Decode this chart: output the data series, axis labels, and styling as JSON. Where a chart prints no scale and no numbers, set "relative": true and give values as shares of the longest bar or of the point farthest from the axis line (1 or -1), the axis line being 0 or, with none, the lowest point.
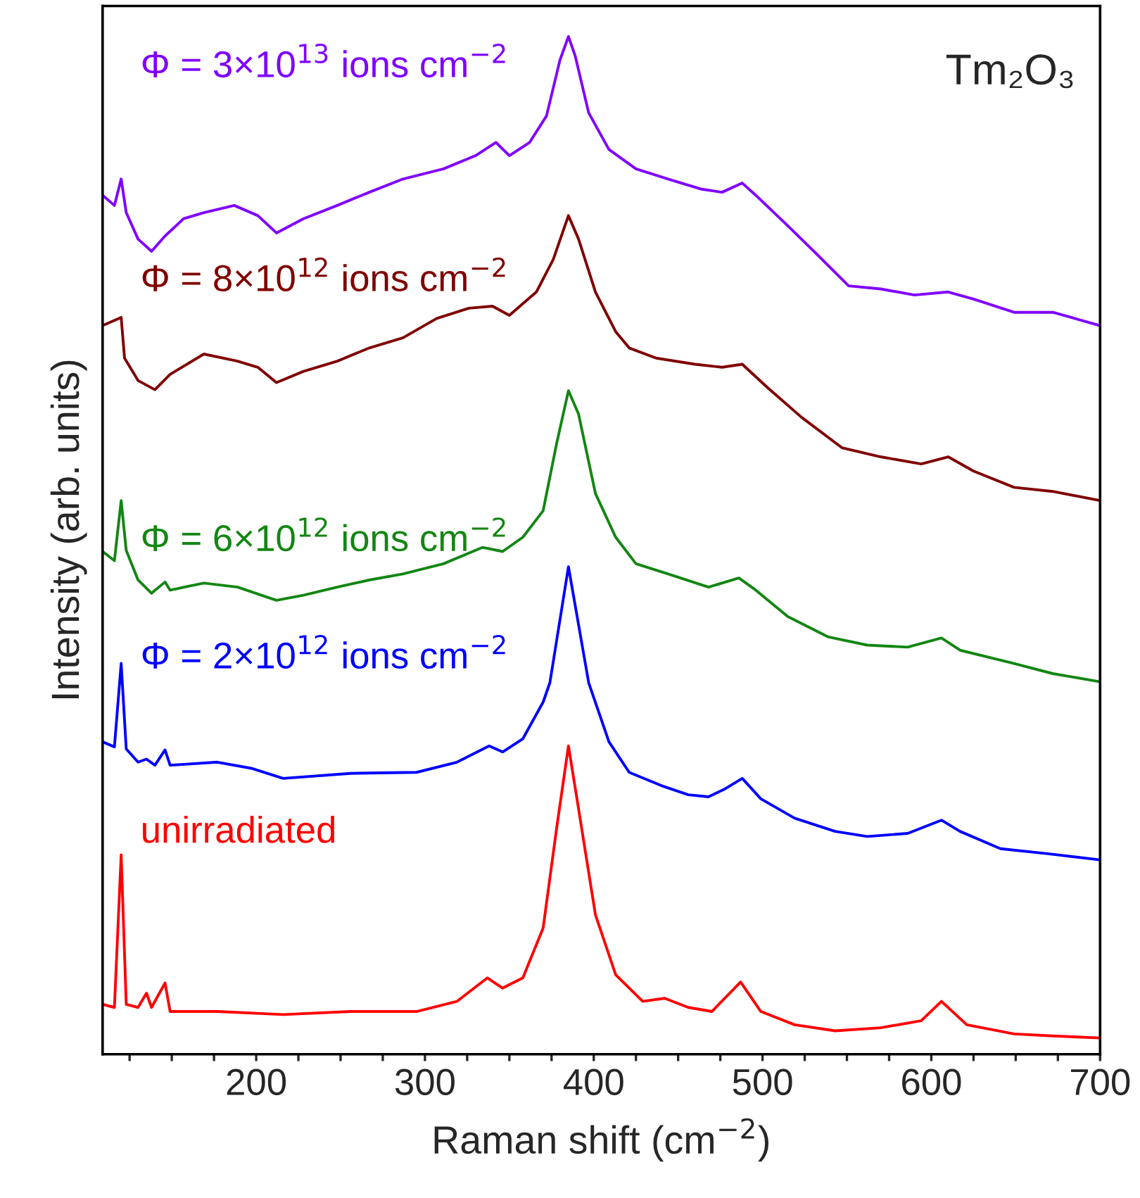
{
  "chart_data": {
    "type": "line",
    "relative": true,
    "xlabel": "Raman shift (cm$^{−2}$)",
    "ylabel": "Intensity (arb. units)",
    "xlim": [
      109,
      700
    ],
    "xticks": [
      {
        "value": 125,
        "label": null
      },
      {
        "value": 150,
        "label": null
      },
      {
        "value": 175,
        "label": null
      },
      200,
      {
        "value": 225,
        "label": null
      },
      {
        "value": 250,
        "label": null
      },
      {
        "value": 275,
        "label": null
      },
      300,
      {
        "value": 325,
        "label": null
      },
      {
        "value": 350,
        "label": null
      },
      {
        "value": 375,
        "label": null
      },
      400,
      {
        "value": 425,
        "label": null
      },
      {
        "value": 450,
        "label": null
      },
      {
        "value": 475,
        "label": null
      },
      500,
      {
        "value": 525,
        "label": null
      },
      {
        "value": 550,
        "label": null
      },
      {
        "value": 575,
        "label": null
      },
      600,
      {
        "value": 625,
        "label": null
      },
      {
        "value": 650,
        "label": null
      },
      {
        "value": 675,
        "label": null
      },
      700
    ],
    "annotations": [
      "Tm₂O₃"
    ],
    "series": [
      {
        "name": "unirradiated",
        "color": "#ff0000",
        "x": [
          109,
          116,
          120,
          123,
          130,
          135,
          138,
          146,
          149,
          177,
          216,
          256,
          295,
          319,
          337,
          346,
          358,
          370,
          378,
          385,
          391,
          401,
          413,
          429,
          442,
          456,
          470,
          487,
          499,
          519,
          543,
          570,
          594,
          606,
          621,
          649,
          672,
          700
        ],
        "values": [
          0.049,
          0.046,
          0.196,
          0.049,
          0.046,
          0.06,
          0.046,
          0.07,
          0.042,
          0.042,
          0.039,
          0.042,
          0.042,
          0.052,
          0.075,
          0.065,
          0.075,
          0.124,
          0.222,
          0.303,
          0.241,
          0.137,
          0.078,
          0.052,
          0.055,
          0.046,
          0.042,
          0.071,
          0.042,
          0.029,
          0.023,
          0.026,
          0.033,
          0.052,
          0.029,
          0.02,
          0.018,
          0.016
        ]
      },
      {
        "name": "Φ = 2×10$^{12}$ ions cm$^{−2}$",
        "color": "#0000ff",
        "x": [
          109,
          116,
          120,
          123,
          130,
          135,
          140,
          146,
          149,
          177,
          197,
          216,
          256,
          295,
          319,
          338,
          346,
          358,
          370,
          374,
          385,
          397,
          409,
          421,
          440,
          456,
          468,
          478,
          488,
          499,
          519,
          543,
          562,
          586,
          606,
          617,
          641,
          669,
          700
        ],
        "values": [
          0.307,
          0.302,
          0.384,
          0.3,
          0.287,
          0.29,
          0.284,
          0.299,
          0.284,
          0.287,
          0.281,
          0.271,
          0.276,
          0.277,
          0.287,
          0.303,
          0.297,
          0.31,
          0.346,
          0.365,
          0.479,
          0.365,
          0.307,
          0.277,
          0.264,
          0.255,
          0.253,
          0.261,
          0.271,
          0.251,
          0.232,
          0.219,
          0.214,
          0.217,
          0.23,
          0.219,
          0.202,
          0.197,
          0.191
        ]
      },
      {
        "name": "Φ = 6×10$^{12}$ ions cm$^{−2}$",
        "color": "#138613",
        "x": [
          109,
          116,
          120,
          123,
          130,
          138,
          146,
          149,
          169,
          189,
          212,
          228,
          248,
          267,
          287,
          311,
          334,
          346,
          358,
          370,
          378,
          385,
          391,
          401,
          413,
          425,
          444,
          468,
          486,
          496,
          515,
          539,
          562,
          586,
          606,
          617,
          649,
          672,
          700
        ],
        "values": [
          0.494,
          0.485,
          0.544,
          0.495,
          0.466,
          0.453,
          0.464,
          0.456,
          0.463,
          0.459,
          0.446,
          0.451,
          0.459,
          0.466,
          0.472,
          0.482,
          0.498,
          0.494,
          0.508,
          0.534,
          0.6,
          0.652,
          0.629,
          0.551,
          0.508,
          0.482,
          0.472,
          0.459,
          0.468,
          0.456,
          0.43,
          0.41,
          0.402,
          0.4,
          0.409,
          0.397,
          0.384,
          0.374,
          0.366
        ]
      },
      {
        "name": "Φ = 8×10$^{12}$ ions cm$^{−2}$",
        "color": "#800000",
        "x": [
          109,
          120,
          122,
          130,
          140,
          149,
          169,
          189,
          201,
          212,
          228,
          248,
          267,
          287,
          307,
          326,
          340,
          350,
          366,
          376,
          385,
          391,
          401,
          413,
          421,
          437,
          460,
          476,
          488,
          503,
          523,
          547,
          570,
          594,
          610,
          625,
          649,
          672,
          700
        ],
        "values": [
          0.716,
          0.724,
          0.684,
          0.662,
          0.653,
          0.668,
          0.688,
          0.681,
          0.675,
          0.66,
          0.671,
          0.681,
          0.694,
          0.704,
          0.723,
          0.733,
          0.735,
          0.726,
          0.749,
          0.781,
          0.824,
          0.801,
          0.749,
          0.71,
          0.694,
          0.684,
          0.678,
          0.675,
          0.678,
          0.655,
          0.626,
          0.596,
          0.587,
          0.58,
          0.587,
          0.573,
          0.557,
          0.553,
          0.544
        ]
      },
      {
        "name": "Φ = 3×10$^{13}$ ions cm$^{−2}$",
        "color": "#8000ff",
        "x": [
          109,
          116,
          120,
          123,
          130,
          138,
          146,
          157,
          169,
          187,
          201,
          212,
          228,
          248,
          267,
          287,
          311,
          330,
          342,
          350,
          362,
          372,
          380,
          385,
          389,
          397,
          409,
          425,
          444,
          464,
          476,
          488,
          496,
          515,
          531,
          551,
          570,
          590,
          610,
          625,
          649,
          672,
          700
        ],
        "values": [
          0.844,
          0.834,
          0.86,
          0.827,
          0.801,
          0.789,
          0.804,
          0.821,
          0.827,
          0.834,
          0.824,
          0.807,
          0.821,
          0.834,
          0.847,
          0.86,
          0.87,
          0.883,
          0.896,
          0.883,
          0.896,
          0.922,
          0.977,
          1.0,
          0.981,
          0.925,
          0.889,
          0.87,
          0.86,
          0.85,
          0.847,
          0.856,
          0.844,
          0.814,
          0.788,
          0.755,
          0.752,
          0.746,
          0.749,
          0.742,
          0.729,
          0.729,
          0.716
        ]
      }
    ]
  }
}
